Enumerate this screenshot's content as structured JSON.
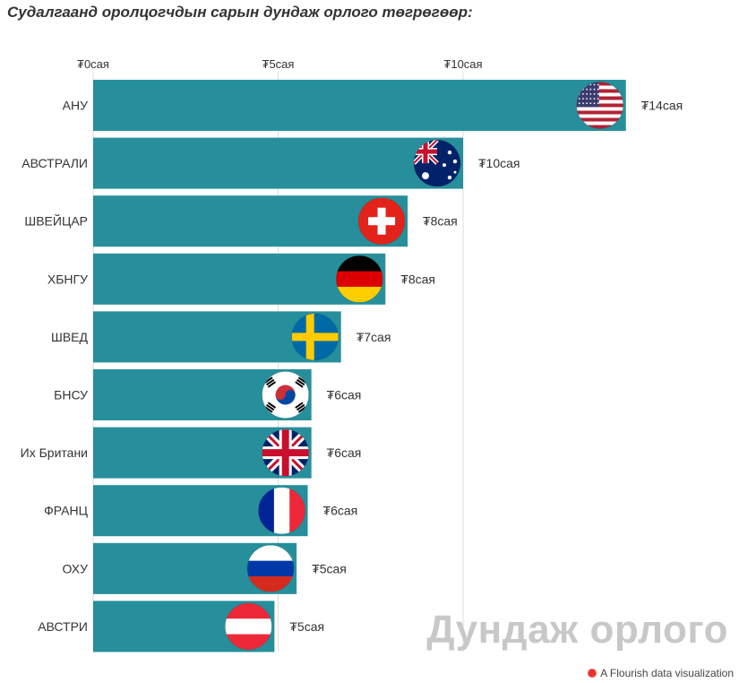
{
  "title": "Судалгаанд оролцогчдын сарын дундаж орлого төгрөгөөр:",
  "watermark": "Дундаж орлого",
  "credit": "A Flourish data visualization",
  "colors": {
    "bar": "#268f9b",
    "grid": "#dddddd",
    "text": "#333333",
    "watermark": "#c8c8c8"
  },
  "chart_data": {
    "type": "bar",
    "orientation": "horizontal",
    "title": "Судалгаанд оролцогчдын сарын дундаж орлого төгрөгөөр:",
    "xlabel": "",
    "ylabel": "",
    "xlim": [
      0,
      15
    ],
    "x_ticks": [
      {
        "value": 0,
        "label": "₮0сая"
      },
      {
        "value": 5,
        "label": "₮5сая"
      },
      {
        "value": 10,
        "label": "₮10сая"
      }
    ],
    "grid": true,
    "categories": [
      "АНУ",
      "АВСТРАЛИ",
      "ШВЕЙЦАР",
      "ХБНГУ",
      "ШВЕД",
      "БНСУ",
      "Их Британи",
      "ФРАНЦ",
      "ОХУ",
      "АВСТРИ"
    ],
    "values": [
      14.4,
      10.0,
      8.5,
      7.9,
      6.7,
      5.9,
      5.9,
      5.8,
      5.5,
      4.9
    ],
    "value_labels": [
      "₮14сая",
      "₮10сая",
      "₮8сая",
      "₮8сая",
      "₮7сая",
      "₮6сая",
      "₮6сая",
      "₮6сая",
      "₮5сая",
      "₮5сая"
    ],
    "flags": [
      "usa-flag-icon",
      "australia-flag-icon",
      "switzerland-flag-icon",
      "germany-flag-icon",
      "sweden-flag-icon",
      "south-korea-flag-icon",
      "uk-flag-icon",
      "france-flag-icon",
      "russia-flag-icon",
      "austria-flag-icon"
    ]
  }
}
